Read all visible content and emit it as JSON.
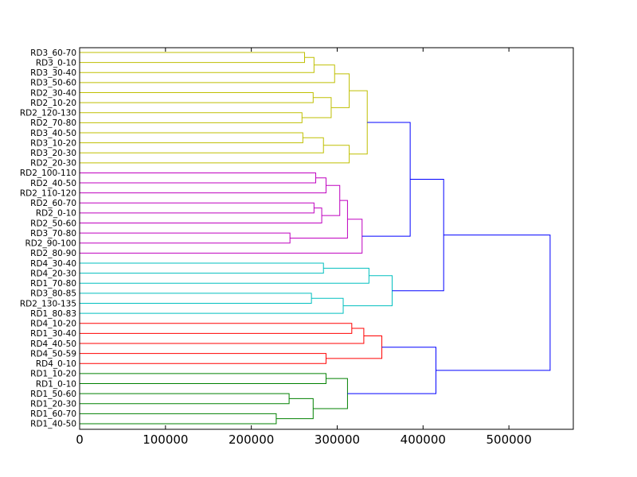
{
  "chart_data": {
    "type": "dendrogram",
    "orientation": "left",
    "xlim": [
      0,
      575000
    ],
    "xticks": [
      0,
      100000,
      200000,
      300000,
      400000,
      500000
    ],
    "tick_labels": [
      "0",
      "100000",
      "200000",
      "300000",
      "400000",
      "500000"
    ],
    "leaves": [
      "RD3_60-70",
      "RD3_0-10",
      "RD3_30-40",
      "RD3_50-60",
      "RD2_30-40",
      "RD2_10-20",
      "RD2_120-130",
      "RD2_70-80",
      "RD3_40-50",
      "RD3_10-20",
      "RD3_20-30",
      "RD2_20-30",
      "RD2_100-110",
      "RD2_40-50",
      "RD2_110-120",
      "RD2_60-70",
      "RD2_0-10",
      "RD2_50-60",
      "RD3_70-80",
      "RD2_90-100",
      "RD2_80-90",
      "RD4_30-40",
      "RD4_20-30",
      "RD1_70-80",
      "RD3_80-85",
      "RD2_130-135",
      "RD1_80-83",
      "RD4_10-20",
      "RD1_30-40",
      "RD4_40-50",
      "RD4_50-59",
      "RD4_0-10",
      "RD1_10-20",
      "RD1_0-10",
      "RD1_50-60",
      "RD1_20-30",
      "RD1_60-70",
      "RD1_40-50"
    ],
    "merges": [
      {
        "id": "a1",
        "left": "L0",
        "right": "L1",
        "height": 262000,
        "color": "#bfbf00"
      },
      {
        "id": "a2",
        "left": "a1",
        "right": "L2",
        "height": 273000,
        "color": "#bfbf00"
      },
      {
        "id": "a3",
        "left": "a2",
        "right": "L3",
        "height": 297000,
        "color": "#bfbf00"
      },
      {
        "id": "a4",
        "left": "L4",
        "right": "L5",
        "height": 272000,
        "color": "#bfbf00"
      },
      {
        "id": "a5",
        "left": "L6",
        "right": "L7",
        "height": 259000,
        "color": "#bfbf00"
      },
      {
        "id": "a6",
        "left": "a4",
        "right": "a5",
        "height": 293000,
        "color": "#bfbf00"
      },
      {
        "id": "a7",
        "left": "a3",
        "right": "a6",
        "height": 314000,
        "color": "#bfbf00"
      },
      {
        "id": "a8",
        "left": "L8",
        "right": "L9",
        "height": 260000,
        "color": "#bfbf00"
      },
      {
        "id": "a9",
        "left": "a8",
        "right": "L10",
        "height": 284000,
        "color": "#bfbf00"
      },
      {
        "id": "a10",
        "left": "a9",
        "right": "L11",
        "height": 314000,
        "color": "#bfbf00"
      },
      {
        "id": "a11",
        "left": "a7",
        "right": "a10",
        "height": 335000,
        "color": "#bfbf00"
      },
      {
        "id": "b1",
        "left": "L12",
        "right": "L13",
        "height": 275000,
        "color": "#bf00bf"
      },
      {
        "id": "b2",
        "left": "b1",
        "right": "L14",
        "height": 287000,
        "color": "#bf00bf"
      },
      {
        "id": "b3",
        "left": "L15",
        "right": "L16",
        "height": 273000,
        "color": "#bf00bf"
      },
      {
        "id": "b4",
        "left": "b3",
        "right": "L17",
        "height": 282000,
        "color": "#bf00bf"
      },
      {
        "id": "b5",
        "left": "b2",
        "right": "b4",
        "height": 303000,
        "color": "#bf00bf"
      },
      {
        "id": "b6",
        "left": "L18",
        "right": "L19",
        "height": 245000,
        "color": "#bf00bf"
      },
      {
        "id": "b7",
        "left": "b5",
        "right": "b6",
        "height": 312000,
        "color": "#bf00bf"
      },
      {
        "id": "b8",
        "left": "b7",
        "right": "L20",
        "height": 329000,
        "color": "#bf00bf"
      },
      {
        "id": "c1",
        "left": "L21",
        "right": "L22",
        "height": 284000,
        "color": "#00bfbf"
      },
      {
        "id": "c2",
        "left": "c1",
        "right": "L23",
        "height": 337000,
        "color": "#00bfbf"
      },
      {
        "id": "c3",
        "left": "L24",
        "right": "L25",
        "height": 270000,
        "color": "#00bfbf"
      },
      {
        "id": "c4",
        "left": "c3",
        "right": "L26",
        "height": 307000,
        "color": "#00bfbf"
      },
      {
        "id": "c5",
        "left": "c2",
        "right": "c4",
        "height": 364000,
        "color": "#00bfbf"
      },
      {
        "id": "d1",
        "left": "L27",
        "right": "L28",
        "height": 317000,
        "color": "#ff0000"
      },
      {
        "id": "d2",
        "left": "d1",
        "right": "L29",
        "height": 331000,
        "color": "#ff0000"
      },
      {
        "id": "d3",
        "left": "L30",
        "right": "L31",
        "height": 287000,
        "color": "#ff0000"
      },
      {
        "id": "d4",
        "left": "d2",
        "right": "d3",
        "height": 352000,
        "color": "#ff0000"
      },
      {
        "id": "e1",
        "left": "L32",
        "right": "L33",
        "height": 287000,
        "color": "#008000"
      },
      {
        "id": "e2",
        "left": "L34",
        "right": "L35",
        "height": 244000,
        "color": "#008000"
      },
      {
        "id": "e3",
        "left": "L36",
        "right": "L37",
        "height": 229000,
        "color": "#008000"
      },
      {
        "id": "e4",
        "left": "e2",
        "right": "e3",
        "height": 272000,
        "color": "#008000"
      },
      {
        "id": "e5",
        "left": "e1",
        "right": "e4",
        "height": 312000,
        "color": "#008000"
      },
      {
        "id": "f1",
        "left": "a11",
        "right": "b8",
        "height": 385000,
        "color": "#0000ff"
      },
      {
        "id": "f2",
        "left": "f1",
        "right": "c5",
        "height": 424000,
        "color": "#0000ff"
      },
      {
        "id": "f3",
        "left": "d4",
        "right": "e5",
        "height": 415000,
        "color": "#0000ff"
      },
      {
        "id": "f4",
        "left": "f2",
        "right": "f3",
        "height": 548000,
        "color": "#0000ff"
      }
    ]
  }
}
